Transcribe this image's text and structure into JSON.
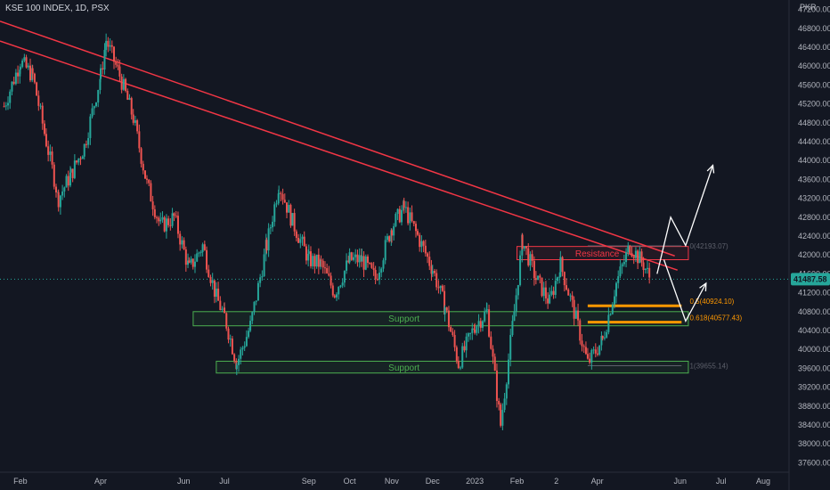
{
  "chart_data": {
    "type": "candlestick",
    "title": "KSE 100 INDEX, 1D, PSX",
    "currency": "PKR",
    "last_price": "41487.58",
    "ylim": [
      37400,
      47400
    ],
    "y_ticks": [
      "47200.00",
      "46800.00",
      "46400.00",
      "46000.00",
      "45600.00",
      "45200.00",
      "44800.00",
      "44400.00",
      "44000.00",
      "43600.00",
      "43200.00",
      "42800.00",
      "42400.00",
      "42000.00",
      "41600.00",
      "41200.00",
      "40800.00",
      "40400.00",
      "40000.00",
      "39600.00",
      "39200.00",
      "38800.00",
      "38400.00",
      "38000.00",
      "37600.00"
    ],
    "x_ticks": [
      "Feb",
      "Apr",
      "Jun",
      "Jul",
      "Sep",
      "Oct",
      "Nov",
      "Dec",
      "2023",
      "Feb",
      "2",
      "Apr",
      "Jun",
      "Jul",
      "Aug"
    ],
    "annotations": {
      "resistance_label": "Resistance",
      "support_label_1": "Support",
      "support_label_2": "Support",
      "fib_05": "0.5(40924.10)",
      "fib_0618": "0.618(40577.43)",
      "fib_top": "0(42193.07)",
      "fib_bottom": "1(39655.14)"
    },
    "close_path": [
      [
        "2022-01-20",
        45150
      ],
      [
        "2022-02-01",
        46100
      ],
      [
        "2022-02-10",
        45800
      ],
      [
        "2022-02-20",
        44400
      ],
      [
        "2022-03-01",
        43200
      ],
      [
        "2022-03-10",
        43700
      ],
      [
        "2022-03-20",
        44300
      ],
      [
        "2022-04-01",
        45800
      ],
      [
        "2022-04-05",
        46550
      ],
      [
        "2022-04-15",
        45800
      ],
      [
        "2022-04-25",
        44900
      ],
      [
        "2022-05-05",
        43500
      ],
      [
        "2022-05-15",
        42600
      ],
      [
        "2022-05-25",
        42800
      ],
      [
        "2022-06-05",
        41700
      ],
      [
        "2022-06-15",
        42200
      ],
      [
        "2022-06-25",
        41100
      ],
      [
        "2022-07-01",
        40700
      ],
      [
        "2022-07-10",
        39700
      ],
      [
        "2022-07-20",
        40500
      ],
      [
        "2022-08-01",
        42200
      ],
      [
        "2022-08-10",
        43500
      ],
      [
        "2022-08-20",
        42700
      ],
      [
        "2022-09-01",
        41900
      ],
      [
        "2022-09-10",
        41800
      ],
      [
        "2022-09-20",
        41200
      ],
      [
        "2022-10-01",
        41900
      ],
      [
        "2022-10-10",
        41900
      ],
      [
        "2022-10-20",
        41500
      ],
      [
        "2022-11-01",
        42600
      ],
      [
        "2022-11-10",
        43000
      ],
      [
        "2022-11-20",
        42400
      ],
      [
        "2022-12-01",
        41700
      ],
      [
        "2022-12-10",
        40900
      ],
      [
        "2022-12-20",
        39700
      ],
      [
        "2023-01-01",
        40500
      ],
      [
        "2023-01-10",
        40800
      ],
      [
        "2023-01-20",
        38400
      ],
      [
        "2023-01-30",
        40800
      ],
      [
        "2023-02-05",
        42300
      ],
      [
        "2023-02-15",
        41500
      ],
      [
        "2023-02-25",
        41000
      ],
      [
        "2023-03-05",
        41800
      ],
      [
        "2023-03-15",
        40800
      ],
      [
        "2023-03-25",
        39700
      ],
      [
        "2023-04-05",
        40200
      ],
      [
        "2023-04-15",
        41400
      ],
      [
        "2023-04-25",
        42200
      ],
      [
        "2023-05-05",
        41800
      ],
      [
        "2023-05-10",
        41490
      ]
    ],
    "forecast_arrows": [
      [
        [
          "2023-05-15",
          41600
        ],
        [
          "2023-05-25",
          42800
        ],
        [
          "2023-06-05",
          42200
        ],
        [
          "2023-06-25",
          43900
        ]
      ],
      [
        [
          "2023-05-20",
          41900
        ],
        [
          "2023-06-05",
          40600
        ],
        [
          "2023-06-20",
          41400
        ]
      ]
    ]
  }
}
